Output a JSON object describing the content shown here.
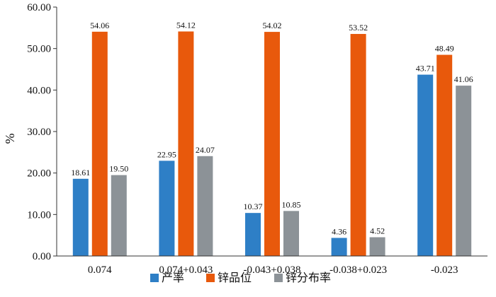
{
  "chart_data": {
    "type": "bar",
    "ylabel": "%",
    "xlabel": "",
    "title": "",
    "ylim": [
      0,
      60
    ],
    "ytick_labels": [
      "0.00",
      "10.00",
      "20.00",
      "30.00",
      "40.00",
      "50.00",
      "60.00"
    ],
    "categories": [
      "0.074",
      "0.074+0.043",
      "-0.043+0.038",
      "-0.038+0.023",
      "-0.023"
    ],
    "series": [
      {
        "name": "产率",
        "color": "#2E7FC6",
        "values": [
          18.61,
          22.95,
          10.37,
          4.36,
          43.71
        ],
        "labels": [
          "18.61",
          "22.95",
          "10.37",
          "4.36",
          "43.71"
        ]
      },
      {
        "name": "锌品位",
        "color": "#E8590C",
        "values": [
          54.06,
          54.12,
          54.02,
          53.52,
          48.49
        ],
        "labels": [
          "54.06",
          "54.12",
          "54.02",
          "53.52",
          "48.49"
        ]
      },
      {
        "name": "锌分布率",
        "color": "#8C9297",
        "values": [
          19.5,
          24.07,
          10.85,
          4.52,
          41.06
        ],
        "labels": [
          "19.50",
          "24.07",
          "10.85",
          "4.52",
          "41.06"
        ]
      }
    ],
    "grid": false,
    "legend": "bottom"
  }
}
